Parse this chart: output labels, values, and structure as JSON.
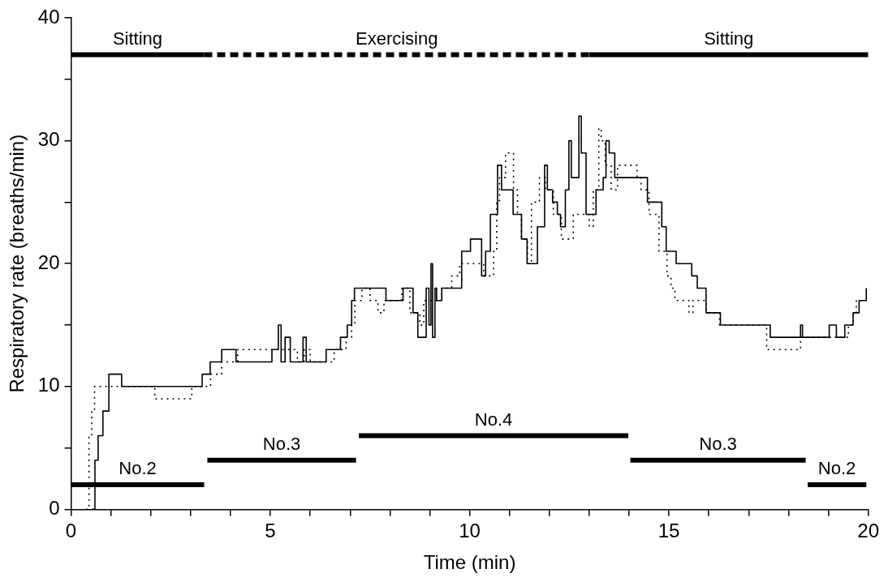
{
  "chart_data": {
    "type": "line",
    "xlabel": "Time (min)",
    "ylabel": "Respiratory rate (breaths/min)",
    "grid": false,
    "legend": false,
    "xlim": [
      0,
      20
    ],
    "xticks": [
      0,
      {
        "value": 1,
        "label": null
      },
      {
        "value": 2,
        "label": null
      },
      {
        "value": 3,
        "label": null
      },
      {
        "value": 4,
        "label": null
      },
      5,
      {
        "value": 6,
        "label": null
      },
      {
        "value": 7,
        "label": null
      },
      {
        "value": 8,
        "label": null
      },
      {
        "value": 9,
        "label": null
      },
      10,
      {
        "value": 11,
        "label": null
      },
      {
        "value": 12,
        "label": null
      },
      {
        "value": 13,
        "label": null
      },
      {
        "value": 14,
        "label": null
      },
      15,
      {
        "value": 16,
        "label": null
      },
      {
        "value": 17,
        "label": null
      },
      {
        "value": 18,
        "label": null
      },
      {
        "value": 19,
        "label": null
      },
      20
    ],
    "ylim": [
      0,
      40
    ],
    "yticks": [
      0,
      {
        "value": 5,
        "label": null
      },
      10,
      {
        "value": 15,
        "label": null
      },
      20,
      {
        "value": 25,
        "label": null
      },
      30,
      {
        "value": 35,
        "label": null
      },
      40
    ],
    "series": [
      {
        "type": "step",
        "color": "#000000",
        "line_style": "solid",
        "x": [
          0.52,
          0.6,
          0.68,
          0.8,
          0.95,
          1.27,
          3.29,
          3.49,
          3.78,
          4.14,
          5.04,
          5.2,
          5.27,
          5.37,
          5.5,
          5.82,
          5.9,
          6.4,
          6.54,
          6.76,
          6.93,
          7.04,
          7.11,
          7.9,
          8.33,
          8.58,
          8.7,
          8.91,
          8.98,
          9.03,
          9.07,
          9.13,
          9.17,
          9.3,
          9.8,
          10.02,
          10.3,
          10.4,
          10.52,
          10.7,
          10.8,
          11.09,
          11.3,
          11.44,
          11.7,
          11.88,
          11.95,
          12.08,
          12.2,
          12.28,
          12.4,
          12.49,
          12.55,
          12.74,
          12.8,
          12.92,
          13.17,
          13.35,
          13.42,
          13.5,
          13.64,
          14.46,
          14.82,
          14.93,
          15.18,
          15.57,
          15.71,
          15.93,
          16.29,
          17.54,
          18.3,
          18.35,
          19.02,
          19.2,
          19.41,
          19.62,
          19.77,
          19.95
        ],
        "values": [
          0,
          4,
          6,
          8,
          11,
          10,
          11,
          12,
          13,
          12,
          13,
          15,
          12,
          14,
          12,
          14,
          12,
          13,
          13,
          14,
          15,
          17,
          18,
          17,
          18,
          16,
          14,
          18,
          15,
          20,
          14,
          18,
          17,
          18,
          21,
          22,
          19,
          21,
          24,
          28,
          26,
          24,
          22,
          20,
          23,
          28,
          26,
          25,
          24,
          23,
          26,
          30,
          27,
          32,
          29,
          24,
          26,
          27,
          30,
          29,
          27,
          25,
          23,
          21,
          20,
          19,
          18,
          16,
          15,
          14,
          15,
          14,
          15,
          14,
          15,
          16,
          17,
          18
        ]
      },
      {
        "type": "step",
        "color": "#000000",
        "line_style": "dotted",
        "x": [
          0.38,
          0.45,
          0.52,
          0.59,
          2.1,
          3.03,
          3.5,
          3.78,
          4.18,
          5.68,
          5.85,
          6.0,
          6.6,
          6.9,
          7.04,
          7.12,
          7.3,
          7.5,
          7.7,
          7.85,
          8.3,
          8.5,
          8.75,
          8.85,
          9.3,
          9.55,
          9.75,
          10.35,
          10.6,
          10.68,
          10.75,
          10.9,
          11.1,
          11.2,
          11.3,
          11.45,
          11.55,
          11.75,
          11.9,
          12.1,
          12.3,
          12.6,
          13.0,
          13.1,
          13.24,
          13.3,
          13.4,
          13.55,
          13.71,
          14.2,
          14.3,
          14.5,
          14.75,
          14.95,
          15.05,
          15.15,
          15.5,
          15.6,
          15.93,
          16.27,
          17.45,
          18.3,
          19.5,
          19.62,
          19.7,
          19.85
        ],
        "values": [
          0,
          6,
          8,
          10,
          9,
          10,
          11,
          12,
          13,
          12,
          13,
          12,
          13,
          14,
          15,
          17,
          18,
          17,
          16,
          17,
          18,
          16,
          15,
          17,
          18,
          19,
          20,
          19,
          21,
          25,
          27,
          29,
          26,
          24,
          22,
          20,
          25,
          27,
          26,
          24,
          22,
          24,
          23,
          26,
          31,
          30,
          28,
          26,
          28,
          27,
          26,
          24,
          21,
          19,
          18,
          17,
          16,
          17,
          16,
          15,
          13,
          14,
          15,
          16,
          17,
          17
        ]
      },
      {
        "type": "line",
        "name": "No.2",
        "color": "#000000",
        "line_style": "solid",
        "x": [
          0,
          3.34
        ],
        "values": [
          2,
          2
        ]
      },
      {
        "type": "line",
        "name": "No.3",
        "color": "#000000",
        "line_style": "solid",
        "x": [
          3.42,
          7.15
        ],
        "values": [
          4,
          4
        ]
      },
      {
        "type": "line",
        "name": "No.4",
        "color": "#000000",
        "line_style": "solid",
        "x": [
          7.22,
          13.98
        ],
        "values": [
          6,
          6
        ]
      },
      {
        "type": "line",
        "name": "No.3",
        "color": "#000000",
        "line_style": "solid",
        "x": [
          14.03,
          18.43
        ],
        "values": [
          4,
          4
        ]
      },
      {
        "type": "line",
        "name": "No.2",
        "color": "#000000",
        "line_style": "solid",
        "x": [
          18.48,
          19.95
        ],
        "values": [
          2,
          2
        ]
      },
      {
        "type": "line",
        "name": "Sitting",
        "color": "#000000",
        "line_style": "solid",
        "x": [
          0,
          3.34
        ],
        "values": [
          37,
          37
        ]
      },
      {
        "type": "line",
        "name": "Exercising",
        "color": "#000000",
        "line_style": "dashed",
        "x": [
          3.34,
          13.0
        ],
        "values": [
          37,
          37
        ]
      },
      {
        "type": "line",
        "name": "Sitting",
        "color": "#000000",
        "line_style": "solid",
        "x": [
          13.0,
          20
        ],
        "values": [
          37,
          37
        ]
      }
    ]
  }
}
